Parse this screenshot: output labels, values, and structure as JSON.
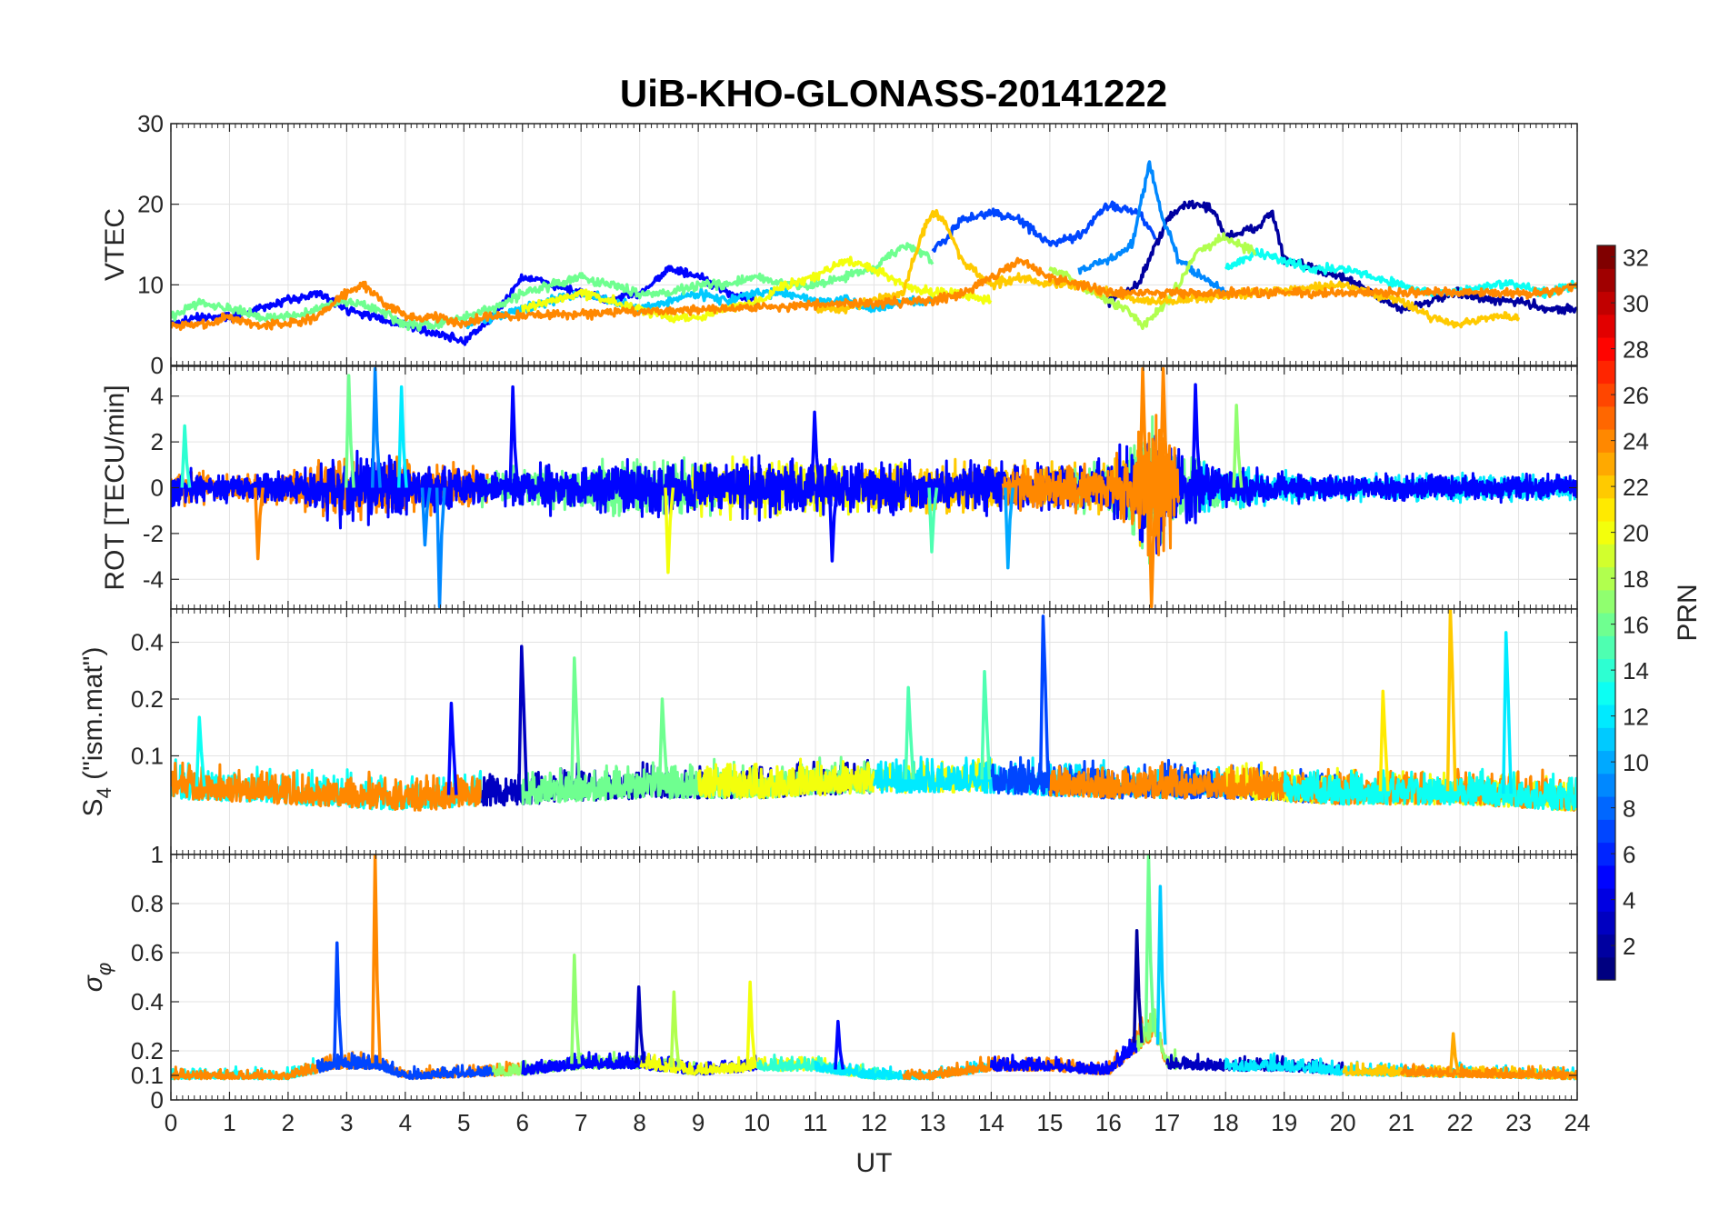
{
  "title": "UiB-KHO-GLONASS-20141222",
  "chart_data": [
    {
      "panel": "VTEC",
      "type": "line",
      "ylabel": "VTEC",
      "xlabel": "",
      "ylim": [
        0,
        30
      ],
      "yticks": [
        0,
        10,
        20,
        30
      ],
      "grid": true,
      "series": [
        {
          "prn": 2,
          "x": [
            16.0,
            16.5,
            17.0,
            17.3,
            17.6,
            17.8,
            18.0,
            18.5,
            18.8,
            19.0,
            19.5,
            20.0,
            20.5,
            21.0,
            21.5,
            22.0,
            22.5,
            23.0,
            23.5,
            24.0
          ],
          "values": [
            8,
            10,
            18,
            20,
            20,
            19,
            16,
            17,
            19,
            13,
            12,
            11,
            9,
            7,
            8,
            9,
            8,
            8,
            7,
            7
          ]
        },
        {
          "prn": 5,
          "x": [
            0,
            0.5,
            1.0,
            1.5,
            2.0,
            2.5,
            3.0,
            3.5,
            4.0,
            4.5,
            5.0,
            5.5,
            6.0,
            6.5,
            7.0,
            7.5,
            8.0,
            8.5,
            9.0,
            9.5,
            10.0
          ],
          "values": [
            5,
            6,
            6,
            7,
            8,
            9,
            7,
            6,
            5,
            4,
            3,
            6,
            11,
            10,
            9,
            8,
            9,
            12,
            11,
            9,
            8
          ]
        },
        {
          "prn": 7,
          "x": [
            13.0,
            13.5,
            14.0,
            14.5,
            15.0,
            15.5,
            16.0,
            16.5,
            16.8
          ],
          "values": [
            14,
            18,
            19,
            18,
            15,
            16,
            20,
            19,
            16
          ]
        },
        {
          "prn": 9,
          "x": [
            15.5,
            16.0,
            16.4,
            16.7,
            16.9,
            17.2,
            17.6,
            18.0
          ],
          "values": [
            12,
            13,
            15,
            25,
            19,
            13,
            11,
            9
          ]
        },
        {
          "prn": 11,
          "x": [
            5.0,
            5.5,
            6.0,
            6.5,
            7.0,
            7.5,
            8.0,
            8.5,
            9.0,
            9.5,
            10.0,
            10.5,
            11.0,
            11.5,
            12.0,
            12.5,
            13.0
          ],
          "values": [
            5,
            6,
            7,
            8,
            9,
            8,
            7,
            8,
            9,
            8,
            9,
            9,
            8,
            8,
            7,
            8,
            8
          ]
        },
        {
          "prn": 13,
          "x": [
            18.0,
            18.5,
            19.0,
            19.5,
            20.0,
            20.5,
            21.0,
            21.5,
            22.0,
            22.5,
            23.0,
            23.5,
            24.0
          ],
          "values": [
            12,
            14,
            13,
            12,
            12,
            11,
            10,
            9,
            9,
            10,
            10,
            9,
            10
          ]
        },
        {
          "prn": 16,
          "x": [
            0,
            0.5,
            1.0,
            1.5,
            2.0,
            2.5,
            3.0,
            3.5,
            4.0,
            4.5,
            5.0,
            5.5,
            6.0,
            6.5,
            7.0,
            7.5,
            8.0,
            8.5,
            9.0,
            9.5,
            10.0,
            10.5,
            11.0,
            11.5,
            12.0,
            12.5,
            13.0
          ],
          "values": [
            6,
            8,
            7,
            6,
            6,
            7,
            8,
            7,
            5,
            5,
            6,
            7,
            9,
            10,
            11,
            10,
            9,
            9,
            10,
            10,
            11,
            10,
            10,
            11,
            12,
            15,
            13
          ]
        },
        {
          "prn": 18,
          "x": [
            15.0,
            15.5,
            16.0,
            16.3,
            16.6,
            16.9,
            17.2,
            17.5,
            18.0,
            18.5
          ],
          "values": [
            12,
            10,
            8,
            7,
            5,
            7,
            10,
            14,
            16,
            14
          ]
        },
        {
          "prn": 20,
          "x": [
            6.0,
            6.5,
            7.0,
            7.5,
            8.0,
            8.5,
            9.0,
            9.5,
            10.0,
            10.5,
            11.0,
            11.5,
            12.0,
            12.5,
            13.0,
            13.5,
            14.0
          ],
          "values": [
            7,
            8,
            9,
            8,
            7,
            6,
            6,
            7,
            8,
            10,
            11,
            13,
            12,
            10,
            9,
            9,
            8
          ]
        },
        {
          "prn": 22,
          "x": [
            11.0,
            11.5,
            12.0,
            12.5,
            12.8,
            13.0,
            13.2,
            13.5,
            14.0,
            14.5,
            15.0,
            15.5,
            16.0,
            16.5,
            17.0,
            20.0,
            20.5,
            21.0,
            21.5,
            22.0,
            22.5,
            23.0
          ],
          "values": [
            7,
            7,
            8,
            9,
            16,
            19,
            18,
            13,
            10,
            11,
            10,
            10,
            9,
            8,
            8,
            10,
            9,
            8,
            6,
            5,
            6,
            6
          ]
        },
        {
          "prn": 24,
          "x": [
            0,
            0.5,
            1.0,
            1.5,
            2.0,
            2.5,
            3.0,
            3.3,
            3.6,
            4.0,
            4.5,
            5.0,
            5.3,
            13.0,
            13.5,
            14.0,
            14.5,
            15.0,
            15.5,
            16.0,
            16.5,
            21.0,
            21.5,
            22.0,
            22.5,
            23.0,
            23.5,
            24.0
          ],
          "values": [
            5,
            5,
            6,
            5,
            5,
            6,
            9,
            10,
            8,
            6,
            6,
            5,
            6,
            8,
            9,
            11,
            13,
            11,
            10,
            9,
            9,
            9,
            9,
            9,
            9,
            9,
            9,
            10
          ]
        }
      ]
    },
    {
      "panel": "ROT",
      "type": "line",
      "ylabel": "ROT [TECU/min]",
      "xlabel": "",
      "ylim": [
        -5.3,
        5.3
      ],
      "yticks": [
        -4,
        -2,
        0,
        2,
        4
      ],
      "grid": true,
      "envelope": {
        "x": [
          0,
          1,
          2,
          2.8,
          3.5,
          4.6,
          5.5,
          6,
          7,
          8,
          9,
          10,
          11,
          12,
          13,
          14,
          15,
          16,
          16.5,
          16.8,
          17.2,
          18,
          19,
          20,
          21,
          22,
          23,
          24
        ],
        "amp": [
          1.2,
          0.8,
          1.0,
          2.0,
          2.2,
          1.5,
          1.0,
          1.3,
          1.5,
          1.8,
          1.6,
          2.0,
          1.8,
          1.5,
          1.6,
          1.5,
          1.4,
          1.6,
          3.5,
          5.0,
          2.5,
          1.2,
          1.0,
          0.8,
          0.8,
          0.9,
          0.8,
          0.7
        ]
      },
      "spikes": [
        {
          "x": 0.25,
          "value": 2.7,
          "prn": 14
        },
        {
          "x": 1.5,
          "value": -3.1,
          "prn": 24
        },
        {
          "x": 3.05,
          "value": 4.9,
          "prn": 16
        },
        {
          "x": 3.5,
          "value": 5.2,
          "prn": 9
        },
        {
          "x": 3.95,
          "value": 4.4,
          "prn": 12
        },
        {
          "x": 4.35,
          "value": -2.5,
          "prn": 9
        },
        {
          "x": 4.6,
          "value": -5.2,
          "prn": 9
        },
        {
          "x": 5.85,
          "value": 4.4,
          "prn": 5
        },
        {
          "x": 8.5,
          "value": -3.7,
          "prn": 20
        },
        {
          "x": 11.0,
          "value": 3.3,
          "prn": 5
        },
        {
          "x": 11.3,
          "value": -3.2,
          "prn": 5
        },
        {
          "x": 13.0,
          "value": -2.8,
          "prn": 15
        },
        {
          "x": 14.3,
          "value": -3.5,
          "prn": 10
        },
        {
          "x": 16.6,
          "value": 5.2,
          "prn": 24
        },
        {
          "x": 16.75,
          "value": -5.2,
          "prn": 24
        },
        {
          "x": 16.95,
          "value": 5.2,
          "prn": 24
        },
        {
          "x": 17.5,
          "value": 4.5,
          "prn": 5
        },
        {
          "x": 18.2,
          "value": 3.6,
          "prn": 17
        }
      ]
    },
    {
      "panel": "S4",
      "type": "line",
      "ylabel": "S4 (\"ism.mat\")",
      "xlabel": "",
      "ylim": [
        0.03,
        0.6
      ],
      "yticks": [
        0.1,
        0.2,
        0.4
      ],
      "scale": "log",
      "grid": true,
      "baseline": {
        "x": [
          0,
          2,
          4,
          6,
          8,
          10,
          12,
          14,
          16,
          18,
          20,
          22,
          24
        ],
        "values": [
          0.07,
          0.065,
          0.06,
          0.065,
          0.07,
          0.07,
          0.075,
          0.075,
          0.07,
          0.07,
          0.065,
          0.065,
          0.06
        ]
      },
      "spikes": [
        {
          "x": 0.5,
          "value": 0.16,
          "prn": 13
        },
        {
          "x": 4.8,
          "value": 0.19,
          "prn": 5
        },
        {
          "x": 6.0,
          "value": 0.38,
          "prn": 3
        },
        {
          "x": 6.9,
          "value": 0.33,
          "prn": 16
        },
        {
          "x": 8.4,
          "value": 0.2,
          "prn": 16
        },
        {
          "x": 12.6,
          "value": 0.23,
          "prn": 15
        },
        {
          "x": 13.9,
          "value": 0.28,
          "prn": 15
        },
        {
          "x": 14.9,
          "value": 0.55,
          "prn": 7
        },
        {
          "x": 20.7,
          "value": 0.22,
          "prn": 21
        },
        {
          "x": 21.85,
          "value": 0.6,
          "prn": 22
        },
        {
          "x": 22.8,
          "value": 0.45,
          "prn": 12
        }
      ]
    },
    {
      "panel": "sigma_phi",
      "type": "line",
      "ylabel": "σφ",
      "xlabel": "UT",
      "xlim": [
        0,
        24
      ],
      "xticks": [
        0,
        1,
        2,
        3,
        4,
        5,
        6,
        7,
        8,
        9,
        10,
        11,
        12,
        13,
        14,
        15,
        16,
        17,
        18,
        19,
        20,
        21,
        22,
        23,
        24
      ],
      "ylim": [
        0,
        1
      ],
      "yticks": [
        0,
        0.1,
        0.2,
        0.4,
        0.6,
        0.8,
        1
      ],
      "grid": true,
      "baseline": {
        "x": [
          0,
          2,
          2.8,
          3.5,
          4,
          6,
          7,
          8,
          9,
          10,
          11,
          12,
          13,
          14,
          15,
          16,
          16.8,
          17,
          18,
          19,
          20,
          22,
          24
        ],
        "values": [
          0.1,
          0.1,
          0.15,
          0.15,
          0.1,
          0.12,
          0.15,
          0.15,
          0.12,
          0.14,
          0.14,
          0.1,
          0.1,
          0.14,
          0.14,
          0.12,
          0.3,
          0.15,
          0.14,
          0.14,
          0.12,
          0.11,
          0.1
        ]
      },
      "spikes": [
        {
          "x": 2.85,
          "value": 0.64,
          "prn": 7
        },
        {
          "x": 3.5,
          "value": 1.0,
          "prn": 24
        },
        {
          "x": 6.9,
          "value": 0.59,
          "prn": 17
        },
        {
          "x": 8.0,
          "value": 0.46,
          "prn": 3
        },
        {
          "x": 8.6,
          "value": 0.44,
          "prn": 18
        },
        {
          "x": 9.9,
          "value": 0.48,
          "prn": 20
        },
        {
          "x": 11.4,
          "value": 0.32,
          "prn": 5
        },
        {
          "x": 16.5,
          "value": 0.69,
          "prn": 2
        },
        {
          "x": 16.7,
          "value": 1.0,
          "prn": 16
        },
        {
          "x": 16.9,
          "value": 0.87,
          "prn": 11
        },
        {
          "x": 21.9,
          "value": 0.27,
          "prn": 23
        }
      ]
    }
  ],
  "colorbar": {
    "label": "PRN",
    "range": [
      1,
      32
    ],
    "ticks": [
      2,
      4,
      6,
      8,
      10,
      12,
      14,
      16,
      18,
      20,
      22,
      24,
      26,
      28,
      30,
      32
    ],
    "colormap": "jet"
  }
}
